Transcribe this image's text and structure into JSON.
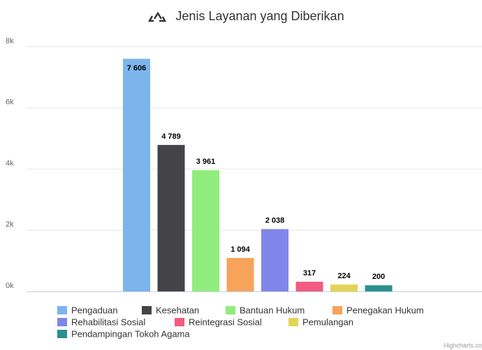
{
  "chart_data": {
    "type": "bar",
    "title": "Jenis Layanan yang Diberikan",
    "ylim": [
      0,
      8000
    ],
    "yticks": [
      {
        "value": 0,
        "label": "0k"
      },
      {
        "value": 2000,
        "label": "2k"
      },
      {
        "value": 4000,
        "label": "4k"
      },
      {
        "value": 6000,
        "label": "6k"
      },
      {
        "value": 8000,
        "label": "8k"
      }
    ],
    "grid": true,
    "series": [
      {
        "name": "Pengaduan",
        "color": "#7cb5ec",
        "values": [
          7606
        ],
        "value_labels": [
          "7 606"
        ]
      },
      {
        "name": "Kesehatan",
        "color": "#434348",
        "values": [
          4789
        ],
        "value_labels": [
          "4 789"
        ]
      },
      {
        "name": "Bantuan Hukum",
        "color": "#90ed7d",
        "values": [
          3961
        ],
        "value_labels": [
          "3 961"
        ]
      },
      {
        "name": "Penegakan Hukum",
        "color": "#f7a35c",
        "values": [
          1094
        ],
        "value_labels": [
          "1 094"
        ]
      },
      {
        "name": "Rehabilitasi Sosial",
        "color": "#8085e9",
        "values": [
          2038
        ],
        "value_labels": [
          "2 038"
        ]
      },
      {
        "name": "Reintegrasi Sosial",
        "color": "#f15c80",
        "values": [
          317
        ]
      },
      {
        "name": "Pemulangan",
        "color": "#e4d354",
        "values": [
          224
        ]
      },
      {
        "name": "Pendampingan Tokoh Agama",
        "color": "#2b908f",
        "values": [
          200
        ]
      }
    ],
    "legend": "bottom",
    "credits": "Highcharts.co"
  }
}
